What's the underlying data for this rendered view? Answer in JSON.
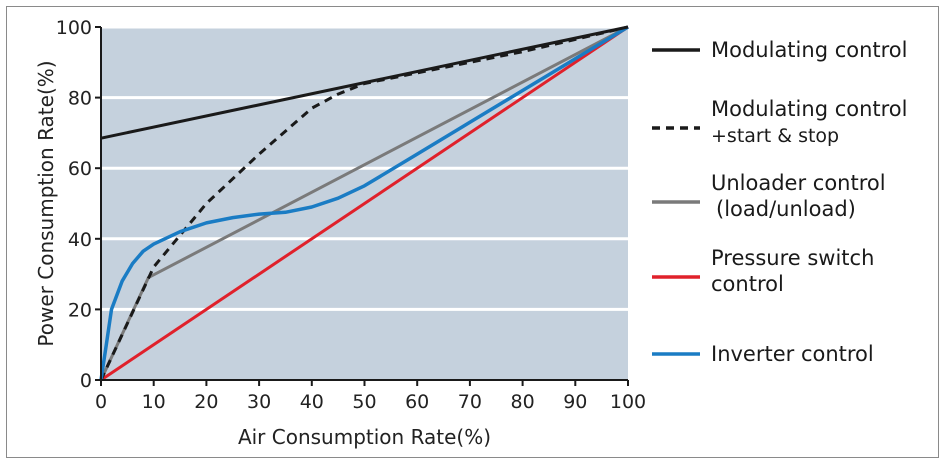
{
  "chart_data": {
    "type": "line",
    "xlabel": "Air Consumption Rate(%)",
    "ylabel": "Power Consumption Rate(%)",
    "xlim": [
      0,
      100
    ],
    "ylim": [
      0,
      100
    ],
    "x_ticks": [
      "0",
      "10",
      "20",
      "30",
      "40",
      "50",
      "60",
      "70",
      "80",
      "90",
      "100"
    ],
    "y_ticks": [
      "0",
      "20",
      "40",
      "60",
      "80",
      "100"
    ],
    "grid": "horizontal",
    "plot_background": "#c5d1dd",
    "legend_position": "right",
    "series": [
      {
        "name": "Modulating control",
        "legend_lines": [
          "Modulating control"
        ],
        "color": "#1a1a1a",
        "dash": "solid",
        "points": [
          [
            0,
            68.5
          ],
          [
            100,
            100
          ]
        ]
      },
      {
        "name": "Modulating control +start & stop",
        "legend_lines": [
          "Modulating control",
          "+start & stop"
        ],
        "color": "#1a1a1a",
        "dash": "dashed",
        "points": [
          [
            0,
            0
          ],
          [
            10,
            32
          ],
          [
            20,
            50
          ],
          [
            30,
            64
          ],
          [
            40,
            77
          ],
          [
            45,
            81
          ],
          [
            50,
            84
          ],
          [
            60,
            87
          ],
          [
            70,
            90
          ],
          [
            80,
            93
          ],
          [
            90,
            96.5
          ],
          [
            100,
            100
          ]
        ]
      },
      {
        "name": "Unloader control (load/unload)",
        "legend_lines": [
          "Unloader control",
          "(load/unload)"
        ],
        "color": "#7a7a7a",
        "dash": "solid",
        "points": [
          [
            0,
            0
          ],
          [
            9,
            29
          ],
          [
            100,
            100
          ]
        ]
      },
      {
        "name": "Pressure switch control",
        "legend_lines": [
          "Pressure switch",
          "control"
        ],
        "color": "#e0212b",
        "dash": "solid",
        "points": [
          [
            0,
            0
          ],
          [
            100,
            100
          ]
        ]
      },
      {
        "name": "Inverter control",
        "legend_lines": [
          "Inverter control"
        ],
        "color": "#1a7cc4",
        "dash": "solid",
        "points": [
          [
            0,
            0
          ],
          [
            1,
            10
          ],
          [
            2,
            20
          ],
          [
            4,
            28
          ],
          [
            6,
            33
          ],
          [
            8,
            36.5
          ],
          [
            10,
            38.5
          ],
          [
            15,
            42
          ],
          [
            20,
            44.5
          ],
          [
            25,
            46
          ],
          [
            30,
            47
          ],
          [
            35,
            47.5
          ],
          [
            40,
            49
          ],
          [
            45,
            51.5
          ],
          [
            50,
            55
          ],
          [
            60,
            64
          ],
          [
            70,
            73
          ],
          [
            80,
            82
          ],
          [
            90,
            91
          ],
          [
            100,
            100
          ]
        ]
      }
    ]
  }
}
